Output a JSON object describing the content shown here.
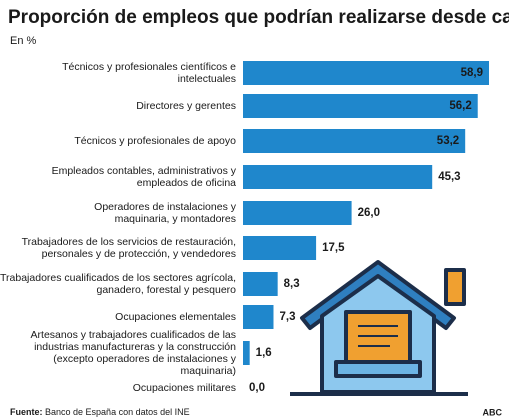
{
  "chart_data": {
    "type": "hbar",
    "title": "Proporción de empleos que podrían realizarse desde casa",
    "subtitle": "En %",
    "categories": [
      "Técnicos y profesionales científicos e\nintelectuales",
      "Directores y gerentes",
      "Técnicos y profesionales  de apoyo",
      "Empleados contables, administrativos y\nempleados de oficina",
      "Operadores de instalaciones y\nmaquinaria, y montadores",
      "Trabajadores de los servicios de restauración,\npersonales y de protección, y vendedores",
      "Trabajadores cualificados de los sectores agrícola,\nganadero, forestal y pesquero",
      "Ocupaciones elementales",
      "Artesanos y trabajadores cualificados de las\nindustrias manufactureras y la construcción\n(excepto operadores de instalaciones y\nmaquinaria)",
      "Ocupaciones militares"
    ],
    "values": [
      58.9,
      56.2,
      53.2,
      45.3,
      26.0,
      17.5,
      8.3,
      7.3,
      1.6,
      0.0
    ],
    "value_labels": [
      "58,9",
      "56,2",
      "53,2",
      "45,3",
      "26,0",
      "17,5",
      "8,3",
      "7,3",
      "1,6",
      "0,0"
    ],
    "color": "#1f87cc",
    "source_label": "Fuente:",
    "source": "Banco de España con datos del INE",
    "brand": "ABC"
  }
}
